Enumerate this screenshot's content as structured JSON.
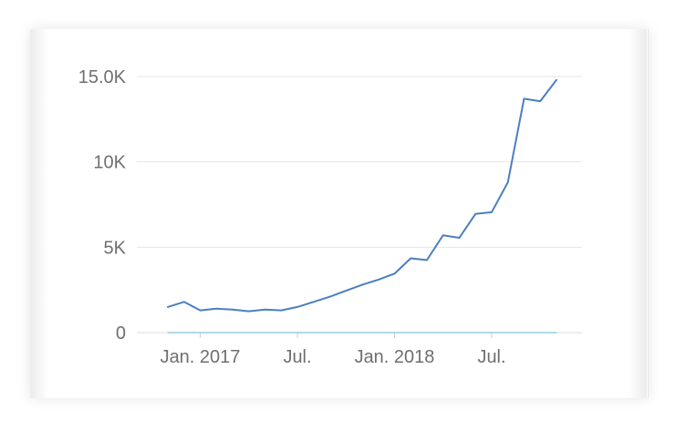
{
  "chart_data": {
    "type": "line",
    "title": "",
    "xlabel": "",
    "ylabel": "",
    "x_ticks": [
      {
        "label": "Jan. 2017",
        "x": "2017-01"
      },
      {
        "label": "Jul.",
        "x": "2017-07"
      },
      {
        "label": "Jan. 2018",
        "x": "2018-01"
      },
      {
        "label": "Jul.",
        "x": "2018-07"
      }
    ],
    "y_ticks": [
      {
        "label": "0",
        "value": 0
      },
      {
        "label": "5K",
        "value": 5000
      },
      {
        "label": "10K",
        "value": 10000
      },
      {
        "label": "15.0K",
        "value": 15000
      }
    ],
    "ylim": [
      0,
      15000
    ],
    "grid": true,
    "series": [
      {
        "color": "#4a7fc1",
        "points": [
          {
            "x": "2016-11",
            "y": 1500
          },
          {
            "x": "2016-12",
            "y": 1800
          },
          {
            "x": "2017-01",
            "y": 1300
          },
          {
            "x": "2017-02",
            "y": 1400
          },
          {
            "x": "2017-03",
            "y": 1350
          },
          {
            "x": "2017-04",
            "y": 1250
          },
          {
            "x": "2017-05",
            "y": 1350
          },
          {
            "x": "2017-06",
            "y": 1300
          },
          {
            "x": "2017-07",
            "y": 1500
          },
          {
            "x": "2017-08",
            "y": 1800
          },
          {
            "x": "2017-09",
            "y": 2100
          },
          {
            "x": "2017-10",
            "y": 2450
          },
          {
            "x": "2017-11",
            "y": 2800
          },
          {
            "x": "2017-12",
            "y": 3100
          },
          {
            "x": "2018-01",
            "y": 3450
          },
          {
            "x": "2018-02",
            "y": 4350
          },
          {
            "x": "2018-03",
            "y": 4250
          },
          {
            "x": "2018-04",
            "y": 5700
          },
          {
            "x": "2018-05",
            "y": 5550
          },
          {
            "x": "2018-06",
            "y": 6950
          },
          {
            "x": "2018-07",
            "y": 7050
          },
          {
            "x": "2018-08",
            "y": 8800
          },
          {
            "x": "2018-09",
            "y": 13700
          },
          {
            "x": "2018-10",
            "y": 13550
          },
          {
            "x": "2018-11",
            "y": 14800
          }
        ]
      },
      {
        "color": "#7fc2dd",
        "points": [
          {
            "x": "2016-11",
            "y": 0
          },
          {
            "x": "2018-11",
            "y": 0
          }
        ]
      }
    ]
  }
}
